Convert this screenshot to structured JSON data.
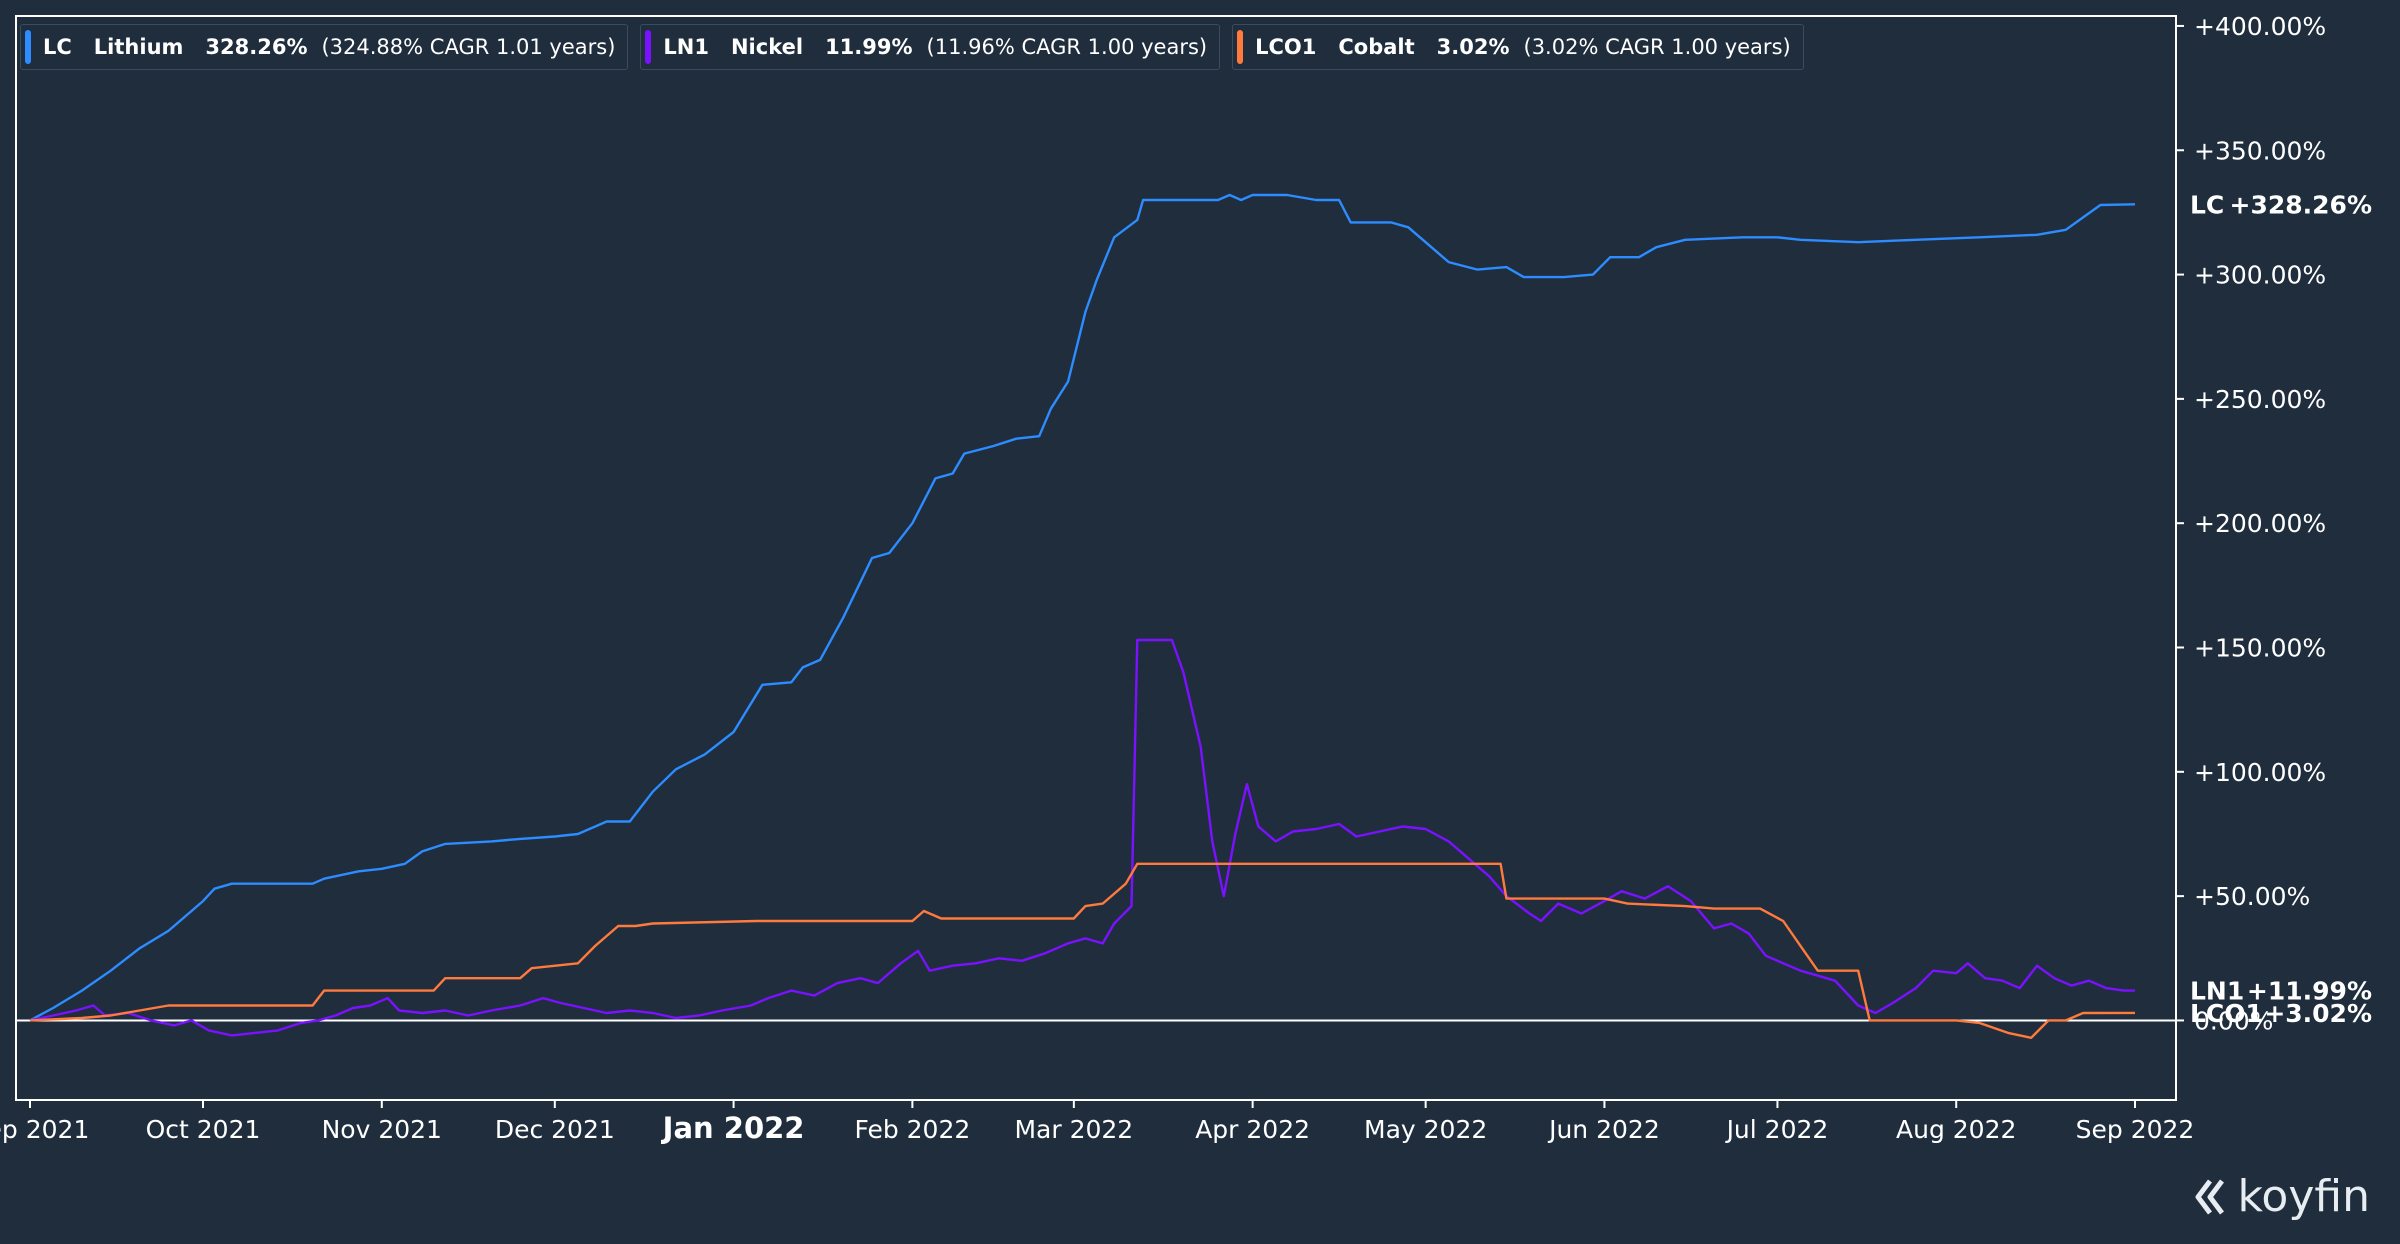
{
  "legend": [
    {
      "symbol": "LC",
      "name": "Lithium",
      "change": "328.26%",
      "cagr": "(324.88% CAGR 1.01 years)",
      "color": "#2d8cff"
    },
    {
      "symbol": "LN1",
      "name": "Nickel",
      "change": "11.99%",
      "cagr": "(11.96% CAGR 1.00 years)",
      "color": "#7a12ff"
    },
    {
      "symbol": "LCO1",
      "name": "Cobalt",
      "change": "3.02%",
      "cagr": "(3.02% CAGR 1.00 years)",
      "color": "#ff7a3c"
    }
  ],
  "logo": {
    "text": "koyfin"
  },
  "chart_data": {
    "type": "line",
    "title": "",
    "xlabel": "",
    "ylabel": "",
    "x_range": [
      "2021-09-01",
      "2022-09-01"
    ],
    "ylim": [
      -32,
      404
    ],
    "grid": false,
    "legend_position": "top-left",
    "x_ticks": [
      {
        "date": "2021-09-01",
        "label": "Sep 2021",
        "bold": false
      },
      {
        "date": "2021-10-01",
        "label": "Oct 2021",
        "bold": false
      },
      {
        "date": "2021-11-01",
        "label": "Nov 2021",
        "bold": false
      },
      {
        "date": "2021-12-01",
        "label": "Dec 2021",
        "bold": false
      },
      {
        "date": "2022-01-01",
        "label": "Jan 2022",
        "bold": true
      },
      {
        "date": "2022-02-01",
        "label": "Feb 2022",
        "bold": false
      },
      {
        "date": "2022-03-01",
        "label": "Mar 2022",
        "bold": false
      },
      {
        "date": "2022-04-01",
        "label": "Apr 2022",
        "bold": false
      },
      {
        "date": "2022-05-01",
        "label": "May 2022",
        "bold": false
      },
      {
        "date": "2022-06-01",
        "label": "Jun 2022",
        "bold": false
      },
      {
        "date": "2022-07-01",
        "label": "Jul 2022",
        "bold": false
      },
      {
        "date": "2022-08-01",
        "label": "Aug 2022",
        "bold": false
      },
      {
        "date": "2022-09-01",
        "label": "Sep 2022",
        "bold": false
      }
    ],
    "y_ticks": [
      {
        "value": 0,
        "label": "0.00%"
      },
      {
        "value": 50,
        "label": "+50.00%"
      },
      {
        "value": 100,
        "label": "+100.00%"
      },
      {
        "value": 150,
        "label": "+150.00%"
      },
      {
        "value": 200,
        "label": "+200.00%"
      },
      {
        "value": 250,
        "label": "+250.00%"
      },
      {
        "value": 300,
        "label": "+300.00%"
      },
      {
        "value": 350,
        "label": "+350.00%"
      },
      {
        "value": 400,
        "label": "+400.00%"
      }
    ],
    "end_labels": [
      {
        "symbol": "LC",
        "value_label": "+328.26%",
        "value": 328.26
      },
      {
        "symbol": "LN1",
        "value_label": "+11.99%",
        "value": 11.99
      },
      {
        "symbol": "LCO1",
        "value_label": "+3.02%",
        "value": 3.02
      }
    ],
    "series": [
      {
        "name": "LC",
        "color": "#2d8cff",
        "points": [
          [
            "2021-09-01",
            0
          ],
          [
            "2021-09-05",
            5
          ],
          [
            "2021-09-10",
            12
          ],
          [
            "2021-09-15",
            20
          ],
          [
            "2021-09-20",
            29
          ],
          [
            "2021-09-25",
            36
          ],
          [
            "2021-09-28",
            42
          ],
          [
            "2021-10-01",
            48
          ],
          [
            "2021-10-03",
            53
          ],
          [
            "2021-10-06",
            55
          ],
          [
            "2021-10-12",
            55
          ],
          [
            "2021-10-20",
            55
          ],
          [
            "2021-10-22",
            57
          ],
          [
            "2021-10-28",
            60
          ],
          [
            "2021-11-01",
            61
          ],
          [
            "2021-11-05",
            63
          ],
          [
            "2021-11-08",
            68
          ],
          [
            "2021-11-12",
            71
          ],
          [
            "2021-11-20",
            72
          ],
          [
            "2021-11-25",
            73
          ],
          [
            "2021-12-01",
            74
          ],
          [
            "2021-12-05",
            75
          ],
          [
            "2021-12-10",
            80
          ],
          [
            "2021-12-14",
            80
          ],
          [
            "2021-12-18",
            92
          ],
          [
            "2021-12-22",
            101
          ],
          [
            "2021-12-27",
            107
          ],
          [
            "2022-01-01",
            116
          ],
          [
            "2022-01-06",
            135
          ],
          [
            "2022-01-11",
            136
          ],
          [
            "2022-01-13",
            142
          ],
          [
            "2022-01-16",
            145
          ],
          [
            "2022-01-20",
            162
          ],
          [
            "2022-01-25",
            186
          ],
          [
            "2022-01-28",
            188
          ],
          [
            "2022-02-01",
            200
          ],
          [
            "2022-02-05",
            218
          ],
          [
            "2022-02-08",
            220
          ],
          [
            "2022-02-10",
            228
          ],
          [
            "2022-02-15",
            231
          ],
          [
            "2022-02-19",
            234
          ],
          [
            "2022-02-23",
            235
          ],
          [
            "2022-02-25",
            246
          ],
          [
            "2022-02-28",
            257
          ],
          [
            "2022-03-03",
            285
          ],
          [
            "2022-03-05",
            298
          ],
          [
            "2022-03-08",
            315
          ],
          [
            "2022-03-12",
            322
          ],
          [
            "2022-03-13",
            330
          ],
          [
            "2022-03-16",
            330
          ],
          [
            "2022-03-22",
            330
          ],
          [
            "2022-03-26",
            330
          ],
          [
            "2022-03-28",
            332
          ],
          [
            "2022-03-30",
            330
          ],
          [
            "2022-04-01",
            332
          ],
          [
            "2022-04-07",
            332
          ],
          [
            "2022-04-12",
            330
          ],
          [
            "2022-04-16",
            330
          ],
          [
            "2022-04-18",
            321
          ],
          [
            "2022-04-25",
            321
          ],
          [
            "2022-04-28",
            319
          ],
          [
            "2022-05-01",
            313
          ],
          [
            "2022-05-05",
            305
          ],
          [
            "2022-05-10",
            302
          ],
          [
            "2022-05-15",
            303
          ],
          [
            "2022-05-18",
            299
          ],
          [
            "2022-05-25",
            299
          ],
          [
            "2022-05-30",
            300
          ],
          [
            "2022-06-02",
            307
          ],
          [
            "2022-06-07",
            307
          ],
          [
            "2022-06-10",
            311
          ],
          [
            "2022-06-15",
            314
          ],
          [
            "2022-06-25",
            315
          ],
          [
            "2022-07-01",
            315
          ],
          [
            "2022-07-05",
            314
          ],
          [
            "2022-07-15",
            313
          ],
          [
            "2022-07-25",
            314
          ],
          [
            "2022-08-05",
            315
          ],
          [
            "2022-08-15",
            316
          ],
          [
            "2022-08-20",
            318
          ],
          [
            "2022-08-23",
            323
          ],
          [
            "2022-08-26",
            328
          ],
          [
            "2022-09-01",
            328.26
          ]
        ]
      },
      {
        "name": "LN1",
        "color": "#7a12ff",
        "points": [
          [
            "2021-09-01",
            0
          ],
          [
            "2021-09-05",
            2
          ],
          [
            "2021-09-09",
            4
          ],
          [
            "2021-09-12",
            6
          ],
          [
            "2021-09-14",
            2
          ],
          [
            "2021-09-18",
            3
          ],
          [
            "2021-09-22",
            0
          ],
          [
            "2021-09-26",
            -2
          ],
          [
            "2021-09-29",
            0
          ],
          [
            "2021-10-02",
            -4
          ],
          [
            "2021-10-06",
            -6
          ],
          [
            "2021-10-10",
            -5
          ],
          [
            "2021-10-14",
            -4
          ],
          [
            "2021-10-18",
            -1
          ],
          [
            "2021-10-21",
            0
          ],
          [
            "2021-10-24",
            2
          ],
          [
            "2021-10-27",
            5
          ],
          [
            "2021-10-30",
            6
          ],
          [
            "2021-11-02",
            9
          ],
          [
            "2021-11-04",
            4
          ],
          [
            "2021-11-08",
            3
          ],
          [
            "2021-11-12",
            4
          ],
          [
            "2021-11-16",
            2
          ],
          [
            "2021-11-20",
            4
          ],
          [
            "2021-11-25",
            6
          ],
          [
            "2021-11-29",
            9
          ],
          [
            "2021-12-02",
            7
          ],
          [
            "2021-12-06",
            5
          ],
          [
            "2021-12-10",
            3
          ],
          [
            "2021-12-14",
            4
          ],
          [
            "2021-12-18",
            3
          ],
          [
            "2021-12-22",
            1
          ],
          [
            "2021-12-26",
            2
          ],
          [
            "2021-12-30",
            4
          ],
          [
            "2022-01-04",
            6
          ],
          [
            "2022-01-07",
            9
          ],
          [
            "2022-01-11",
            12
          ],
          [
            "2022-01-15",
            10
          ],
          [
            "2022-01-19",
            15
          ],
          [
            "2022-01-23",
            17
          ],
          [
            "2022-01-26",
            15
          ],
          [
            "2022-01-30",
            23
          ],
          [
            "2022-02-02",
            28
          ],
          [
            "2022-02-04",
            20
          ],
          [
            "2022-02-08",
            22
          ],
          [
            "2022-02-12",
            23
          ],
          [
            "2022-02-16",
            25
          ],
          [
            "2022-02-20",
            24
          ],
          [
            "2022-02-24",
            27
          ],
          [
            "2022-02-28",
            31
          ],
          [
            "2022-03-03",
            33
          ],
          [
            "2022-03-06",
            31
          ],
          [
            "2022-03-08",
            39
          ],
          [
            "2022-03-11",
            46
          ],
          [
            "2022-03-12",
            153
          ],
          [
            "2022-03-15",
            153
          ],
          [
            "2022-03-18",
            153
          ],
          [
            "2022-03-20",
            140
          ],
          [
            "2022-03-23",
            110
          ],
          [
            "2022-03-25",
            72
          ],
          [
            "2022-03-27",
            50
          ],
          [
            "2022-03-29",
            75
          ],
          [
            "2022-03-31",
            95
          ],
          [
            "2022-04-02",
            78
          ],
          [
            "2022-04-05",
            72
          ],
          [
            "2022-04-08",
            76
          ],
          [
            "2022-04-12",
            77
          ],
          [
            "2022-04-16",
            79
          ],
          [
            "2022-04-19",
            74
          ],
          [
            "2022-04-23",
            76
          ],
          [
            "2022-04-27",
            78
          ],
          [
            "2022-05-01",
            77
          ],
          [
            "2022-05-05",
            72
          ],
          [
            "2022-05-09",
            64
          ],
          [
            "2022-05-12",
            58
          ],
          [
            "2022-05-15",
            50
          ],
          [
            "2022-05-19",
            43
          ],
          [
            "2022-05-21",
            40
          ],
          [
            "2022-05-24",
            47
          ],
          [
            "2022-05-28",
            43
          ],
          [
            "2022-06-01",
            48
          ],
          [
            "2022-06-04",
            52
          ],
          [
            "2022-06-08",
            49
          ],
          [
            "2022-06-12",
            54
          ],
          [
            "2022-06-16",
            48
          ],
          [
            "2022-06-20",
            37
          ],
          [
            "2022-06-23",
            39
          ],
          [
            "2022-06-26",
            35
          ],
          [
            "2022-06-29",
            26
          ],
          [
            "2022-07-02",
            23
          ],
          [
            "2022-07-05",
            20
          ],
          [
            "2022-07-08",
            18
          ],
          [
            "2022-07-11",
            16
          ],
          [
            "2022-07-15",
            6
          ],
          [
            "2022-07-18",
            3
          ],
          [
            "2022-07-21",
            7
          ],
          [
            "2022-07-25",
            13
          ],
          [
            "2022-07-28",
            20
          ],
          [
            "2022-08-01",
            19
          ],
          [
            "2022-08-03",
            23
          ],
          [
            "2022-08-06",
            17
          ],
          [
            "2022-08-09",
            16
          ],
          [
            "2022-08-12",
            13
          ],
          [
            "2022-08-15",
            22
          ],
          [
            "2022-08-18",
            17
          ],
          [
            "2022-08-21",
            14
          ],
          [
            "2022-08-24",
            16
          ],
          [
            "2022-08-27",
            13
          ],
          [
            "2022-08-30",
            12
          ],
          [
            "2022-09-01",
            11.99
          ]
        ]
      },
      {
        "name": "LCO1",
        "color": "#ff7a3c",
        "points": [
          [
            "2021-09-01",
            0
          ],
          [
            "2021-09-10",
            1
          ],
          [
            "2021-09-15",
            2
          ],
          [
            "2021-09-20",
            4
          ],
          [
            "2021-09-25",
            6
          ],
          [
            "2021-10-20",
            6
          ],
          [
            "2021-10-22",
            12
          ],
          [
            "2021-11-10",
            12
          ],
          [
            "2021-11-12",
            17
          ],
          [
            "2021-11-25",
            17
          ],
          [
            "2021-11-27",
            21
          ],
          [
            "2021-12-05",
            23
          ],
          [
            "2021-12-08",
            30
          ],
          [
            "2021-12-12",
            38
          ],
          [
            "2021-12-15",
            38
          ],
          [
            "2021-12-18",
            39
          ],
          [
            "2022-01-05",
            40
          ],
          [
            "2022-02-01",
            40
          ],
          [
            "2022-02-03",
            44
          ],
          [
            "2022-02-06",
            41
          ],
          [
            "2022-02-15",
            41
          ],
          [
            "2022-03-01",
            41
          ],
          [
            "2022-03-03",
            46
          ],
          [
            "2022-03-06",
            47
          ],
          [
            "2022-03-10",
            55
          ],
          [
            "2022-03-12",
            63
          ],
          [
            "2022-04-15",
            63
          ],
          [
            "2022-05-01",
            63
          ],
          [
            "2022-05-14",
            63
          ],
          [
            "2022-05-15",
            49
          ],
          [
            "2022-06-01",
            49
          ],
          [
            "2022-06-05",
            47
          ],
          [
            "2022-06-15",
            46
          ],
          [
            "2022-06-20",
            45
          ],
          [
            "2022-06-28",
            45
          ],
          [
            "2022-07-02",
            40
          ],
          [
            "2022-07-05",
            30
          ],
          [
            "2022-07-08",
            20
          ],
          [
            "2022-07-15",
            20
          ],
          [
            "2022-07-17",
            0
          ],
          [
            "2022-08-01",
            0
          ],
          [
            "2022-08-05",
            -1
          ],
          [
            "2022-08-10",
            -5
          ],
          [
            "2022-08-14",
            -7
          ],
          [
            "2022-08-17",
            0
          ],
          [
            "2022-08-20",
            0
          ],
          [
            "2022-08-23",
            3
          ],
          [
            "2022-09-01",
            3.02
          ]
        ]
      }
    ]
  }
}
